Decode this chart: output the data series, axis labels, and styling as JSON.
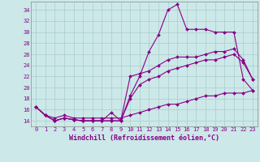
{
  "background_color": "#cce8e8",
  "grid_color": "#aacccc",
  "line_color": "#880088",
  "xlabel": "Windchill (Refroidissement éolien,°C)",
  "ylabel_ticks": [
    14,
    16,
    18,
    20,
    22,
    24,
    26,
    28,
    30,
    32,
    34
  ],
  "xlim": [
    -0.5,
    23.5
  ],
  "ylim": [
    13.0,
    35.5
  ],
  "xticks": [
    0,
    1,
    2,
    3,
    4,
    5,
    6,
    7,
    8,
    9,
    10,
    11,
    12,
    13,
    14,
    15,
    16,
    17,
    18,
    19,
    20,
    21,
    22,
    23
  ],
  "line1_x": [
    0,
    1,
    2,
    3,
    4,
    5,
    6,
    7,
    8,
    9,
    10,
    11,
    12,
    13,
    14,
    15,
    16,
    17,
    18,
    19,
    20,
    21,
    22,
    23
  ],
  "line1_y": [
    16.5,
    15.0,
    14.0,
    14.5,
    14.2,
    14.0,
    14.0,
    14.0,
    14.0,
    14.0,
    18.5,
    22.0,
    26.5,
    29.5,
    34.0,
    35.0,
    30.5,
    30.5,
    30.5,
    30.0,
    30.0,
    30.0,
    21.5,
    19.5
  ],
  "line2_x": [
    0,
    1,
    2,
    3,
    4,
    5,
    6,
    7,
    8,
    9,
    10,
    11,
    12,
    13,
    14,
    15,
    16,
    17,
    18,
    19,
    20,
    21,
    22,
    23
  ],
  "line2_y": [
    16.5,
    15.0,
    14.0,
    14.5,
    14.2,
    14.0,
    14.0,
    14.0,
    15.5,
    14.0,
    22.0,
    22.5,
    23.0,
    24.0,
    25.0,
    25.5,
    25.5,
    25.5,
    26.0,
    26.5,
    26.5,
    27.0,
    25.0,
    21.5
  ],
  "line3_x": [
    0,
    1,
    2,
    3,
    4,
    5,
    6,
    7,
    8,
    9,
    10,
    11,
    12,
    13,
    14,
    15,
    16,
    17,
    18,
    19,
    20,
    21,
    22,
    23
  ],
  "line3_y": [
    16.5,
    15.0,
    14.0,
    14.5,
    14.2,
    14.0,
    14.0,
    14.0,
    14.0,
    14.0,
    18.0,
    20.5,
    21.5,
    22.0,
    23.0,
    23.5,
    24.0,
    24.5,
    25.0,
    25.0,
    25.5,
    26.0,
    24.5,
    21.5
  ],
  "line4_x": [
    0,
    1,
    2,
    3,
    4,
    5,
    6,
    7,
    8,
    9,
    10,
    11,
    12,
    13,
    14,
    15,
    16,
    17,
    18,
    19,
    20,
    21,
    22,
    23
  ],
  "line4_y": [
    16.5,
    15.0,
    14.5,
    15.0,
    14.5,
    14.5,
    14.5,
    14.5,
    14.5,
    14.5,
    15.0,
    15.5,
    16.0,
    16.5,
    17.0,
    17.0,
    17.5,
    18.0,
    18.5,
    18.5,
    19.0,
    19.0,
    19.0,
    19.5
  ],
  "tick_fontsize": 5.0,
  "xlabel_fontsize": 6.0,
  "marker_size": 2.0,
  "linewidth": 0.8
}
